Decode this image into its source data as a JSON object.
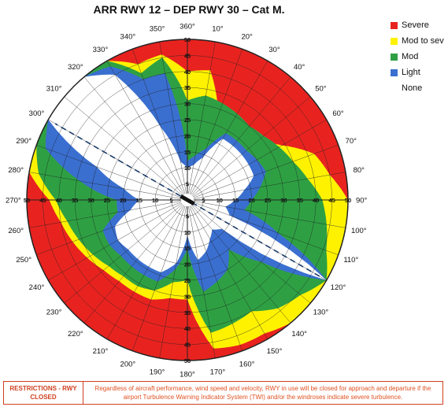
{
  "title": "ARR RWY 12 – DEP RWY 30 – Cat M.",
  "legend": [
    {
      "label": "Severe",
      "color": "#e8231f"
    },
    {
      "label": "Mod to sev",
      "color": "#fff200"
    },
    {
      "label": "Mod",
      "color": "#2ea043"
    },
    {
      "label": "Light",
      "color": "#3a6fd0"
    },
    {
      "label": "None",
      "color": ""
    }
  ],
  "footer": {
    "label": "RESTRICTIONS - RWY CLOSED",
    "text": "Regardless of aircraft performance, wind speed and velocity, RWY in use will be closed for approach and departure if the airport Turbulence Warning Indicator System (TWI) and/or the windroses indicate severe turbulence."
  },
  "chart_data": {
    "type": "polar-windrose",
    "directions": [
      "360°",
      "10°",
      "20°",
      "30°",
      "40°",
      "50°",
      "60°",
      "70°",
      "80°",
      "90°",
      "100°",
      "110°",
      "120°",
      "130°",
      "140°",
      "150°",
      "160°",
      "170°",
      "180°",
      "190°",
      "200°",
      "210°",
      "220°",
      "230°",
      "240°",
      "250°",
      "260°",
      "270°",
      "280°",
      "290°",
      "300°",
      "310°",
      "320°",
      "330°",
      "340°",
      "350°"
    ],
    "speed_labels": [
      "5",
      "10",
      "15",
      "20",
      "25",
      "30",
      "35",
      "40",
      "45",
      "50"
    ],
    "radial_range": [
      0,
      50
    ],
    "runway_heading_deg": 120,
    "level_colors": {
      "none": "#ffffff",
      "light": "#3a6fd0",
      "mod": "#2ea043",
      "modsev": "#fff200",
      "severe": "#e8231f"
    },
    "boundaries": {
      "directions_deg": [
        0,
        10,
        20,
        30,
        40,
        50,
        60,
        70,
        80,
        90,
        100,
        110,
        120,
        130,
        140,
        150,
        160,
        170,
        180,
        190,
        200,
        210,
        220,
        230,
        240,
        250,
        260,
        270,
        280,
        290,
        300,
        310,
        320,
        330,
        340,
        350
      ],
      "none_light": [
        10,
        11,
        14,
        22,
        22,
        22,
        22,
        22,
        18,
        15,
        12,
        14,
        50,
        14,
        12,
        14,
        17,
        19,
        11,
        20,
        24,
        24,
        24,
        24,
        25,
        24,
        18,
        15,
        20,
        30,
        50,
        50,
        50,
        45,
        24,
        12
      ],
      "light_mod": [
        12,
        14,
        17,
        24,
        24,
        24,
        25,
        26,
        23,
        20,
        18,
        30,
        50,
        30,
        20,
        25,
        27,
        29,
        15,
        22,
        27,
        27,
        27,
        27,
        28,
        28,
        22,
        22,
        34,
        47,
        50,
        50,
        50,
        48,
        40,
        40
      ],
      "mod_modsev": [
        31,
        33,
        32,
        31,
        30,
        31,
        33,
        35,
        38,
        42,
        44,
        46,
        50,
        46,
        44,
        40,
        41,
        42,
        25,
        26,
        30,
        31,
        31,
        32,
        34,
        36,
        38,
        41,
        47,
        50,
        50,
        50,
        50,
        50,
        42,
        45
      ],
      "modsev_severe": [
        40,
        41,
        28,
        26,
        27,
        28,
        34,
        42,
        45,
        50,
        50,
        50,
        50,
        50,
        50,
        48,
        48,
        47,
        31,
        31,
        33,
        33,
        33,
        34,
        36,
        38,
        40,
        43,
        50,
        50,
        50,
        50,
        50,
        50,
        45,
        46
      ]
    }
  }
}
